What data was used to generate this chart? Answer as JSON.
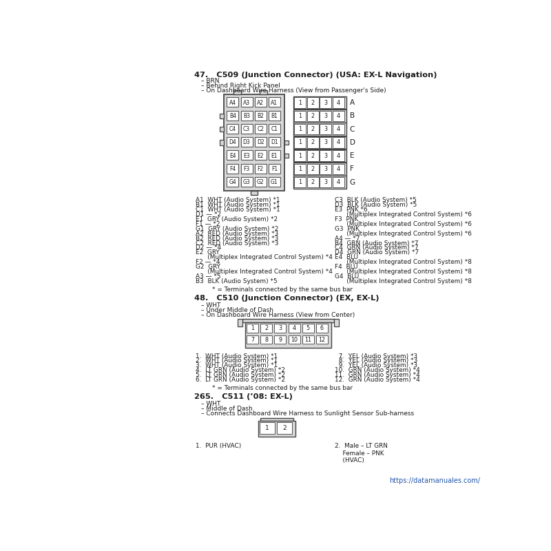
{
  "bg_color": "#ffffff",
  "text_color": "#1a1a1a",
  "link_color": "#2255aa",
  "title_47": "47.   C509 (Junction Connector) (USA: EX-L Navigation)",
  "sub_47": [
    "– BRN",
    "– Behind Right Kick Panel",
    "– On Dashboard Wire Harness (View from Passenger's Side)"
  ],
  "left_cols_labels": [
    [
      "A4",
      "A3",
      "A2",
      "A1"
    ],
    [
      "B4",
      "B3",
      "B2",
      "B1"
    ],
    [
      "C4",
      "C3",
      "C2",
      "C1"
    ],
    [
      "D4",
      "D3",
      "D2",
      "D1"
    ],
    [
      "E4",
      "E3",
      "E2",
      "E1"
    ],
    [
      "F4",
      "F3",
      "F2",
      "F1"
    ],
    [
      "G4",
      "G3",
      "G2",
      "G1"
    ]
  ],
  "right_row_labels": [
    "A",
    "B",
    "C",
    "D",
    "E",
    "F",
    "G"
  ],
  "leg47_col1": [
    "A1  WHT (Audio System) *1",
    "B1  WHT (Audio System) *1",
    "C1  WHT (Audio System) *1",
    "D1 — *2",
    "E1  GRY (Audio System) *2",
    "F1 — *2",
    "G1  GRY (Audio System) *2",
    "A2  RED (Audio System) *3",
    "B2  RED (Audio System) *3",
    "C2  RED (Audio System) *3",
    "D2 — *4",
    "E2  GRY",
    "      (Multiplex Integrated Control System) *4",
    "F2 — *4",
    "G2  GRY",
    "      (Multiplex Integrated Control System) *4",
    "A3 — *5",
    "B3  BLK (Audio System) *5"
  ],
  "leg47_col2": [
    "C3  BLK (Audio System) *5",
    "D3  BLK (Audio System) *5",
    "E3  PNK *6",
    "      (Multiplex Integrated Control System) *6",
    "F3  PNK",
    "      (Multiplex Integrated Control System) *6",
    "G3  PNK",
    "      (Multiplex Integrated Control System) *6",
    "A4 — *7",
    "B4  GRN (Audio System) *7",
    "C4  GRN (Audio System) *7",
    "D4  GRN (Audio System) *7",
    "E4  BLU",
    "      (Multiplex Integrated Control System) *8",
    "F4  BLU",
    "      (Multiplex Integrated Control System) *8",
    "G4  BLU",
    "      (Multiplex Integrated Control System) *8"
  ],
  "bus_note_47": "* = Terminals connected by the same bus bar",
  "title_48": "48.   C510 (Junction Connector) (EX, EX-L)",
  "sub_48": [
    "– WHT",
    "– Under Middle of Dash",
    "– On Dashboard Wire Harness (View from Center)"
  ],
  "c510_row1": [
    1,
    2,
    3,
    4,
    5,
    6
  ],
  "c510_row2": [
    7,
    8,
    9,
    10,
    11,
    12
  ],
  "leg48_col1": [
    "1.  WHT (Audio System) *1",
    "2.  WHT (Audio System) *1",
    "3.  WHT (Audio System) *1",
    "4.  LT GRN (Audio System) *2",
    "5.  LT GRN (Audio System) *2",
    "6.  LT GRN (Audio System) *2"
  ],
  "leg48_col2": [
    "  7.  YEL (Audio System) *3",
    "  8.  YEL (Audio System) *3",
    "  9.  YEL (Audio System) *3",
    "10.  GRN (Audio System) *4",
    "11.  GRN (Audio System) *4",
    "12.  GRN (Audio System) *4"
  ],
  "bus_note_48": "* = Terminals connected by the same bus bar",
  "title_265": "265.   C511 (’08: EX-L)",
  "sub_265": [
    "– WHT",
    "– Middle of Dash",
    "– Connects Dashboard Wire Harness to Sunlight Sensor Sub-harness"
  ],
  "leg265_left": "1.  PUR (HVAC)",
  "leg265_right": "2.  Male – LT GRN\n    Female – PNK\n    (HVAC)",
  "url": "https://datamanuales.com/"
}
